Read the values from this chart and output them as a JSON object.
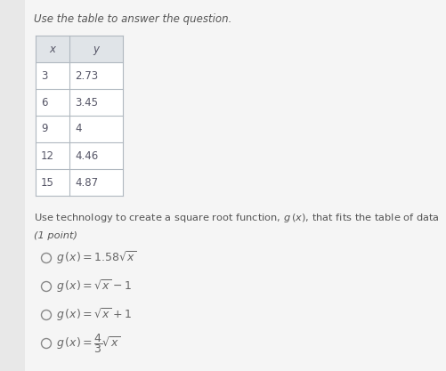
{
  "title": "Use the table to answer the question.",
  "table_headers": [
    "x",
    "y"
  ],
  "table_data": [
    [
      "3",
      "2.73"
    ],
    [
      "6",
      "3.45"
    ],
    [
      "9",
      "4"
    ],
    [
      "12",
      "4.46"
    ],
    [
      "15",
      "4.87"
    ]
  ],
  "question_text": "Use technology to create a square root function, $g\\,(x)$, that fits the table of data",
  "point_text": "(1 point)",
  "options": [
    "$g\\,(x) = 1.58\\sqrt{x}$",
    "$g\\,(x) = \\sqrt{x} - 1$",
    "$g\\,(x) = \\sqrt{x} + 1$",
    "$g\\,(x) = \\dfrac{4}{3}\\sqrt{x}$"
  ],
  "bg_color": "#e8e8e8",
  "panel_color": "#f5f5f5",
  "table_line_color": "#b0b8c0",
  "title_color": "#555555",
  "text_color": "#555555",
  "option_color": "#666666",
  "circle_color": "#888888"
}
